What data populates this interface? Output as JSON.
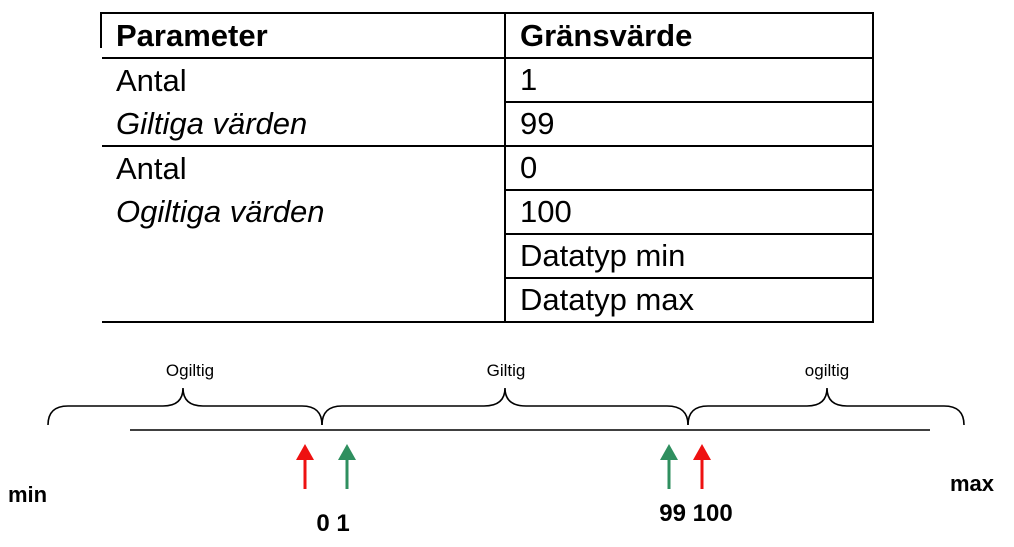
{
  "table": {
    "headers": [
      "Parameter",
      "Gränsvärde"
    ],
    "groups": [
      {
        "label": "Antal",
        "sublabel": "Giltiga värden",
        "values": [
          "1",
          "99"
        ]
      },
      {
        "label": "Antal",
        "sublabel": "Ogiltiga värden",
        "values": [
          "0",
          "100",
          "Datatyp min",
          "Datatyp max"
        ]
      }
    ]
  },
  "diagram": {
    "regions": [
      "Ogiltig",
      "Giltig",
      "ogiltig"
    ],
    "ends": {
      "min": "min",
      "max": "max"
    },
    "left_boundary_label": "0 1",
    "right_boundary_label": "99 100",
    "colors": {
      "invalid_arrow": "#ee1111",
      "valid_arrow": "#2f8f5f",
      "line": "#000000"
    }
  }
}
